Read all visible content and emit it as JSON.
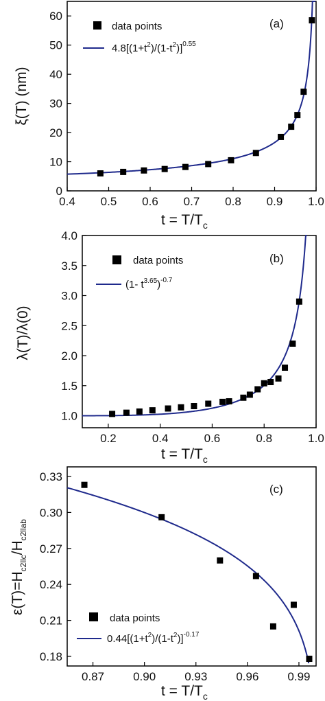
{
  "colors": {
    "fit": "#1f2a8c",
    "marker": "#000000",
    "axis": "#000000"
  },
  "chart_data": [
    {
      "type": "scatter",
      "annotation": "(a)",
      "xlabel": "t = T/T",
      "xlabel_sub": "c",
      "ylabel": "ξ(T) (nm)",
      "xlim": [
        0.4,
        1.0
      ],
      "ylim": [
        0,
        65
      ],
      "xticks": [
        "0.4",
        "0.5",
        "0.6",
        "0.7",
        "0.8",
        "0.9",
        "1.0"
      ],
      "yticks": [
        "0",
        "10",
        "20",
        "30",
        "40",
        "50",
        "60"
      ],
      "legend": {
        "placement": "top-left",
        "points_label": "data points",
        "fit_label": "4.8[(1+t²)/(1-t²)]^0.55"
      },
      "series": [
        {
          "kind": "points",
          "x": [
            0.48,
            0.535,
            0.585,
            0.635,
            0.685,
            0.74,
            0.795,
            0.855,
            0.915,
            0.94,
            0.955,
            0.97,
            0.99
          ],
          "y": [
            6,
            6.5,
            7,
            7.5,
            8.2,
            9.2,
            10.5,
            13,
            18.5,
            22,
            26,
            34,
            58.5
          ]
        },
        {
          "kind": "fit",
          "formula": "4.8*((1+t^2)/(1-t^2))^0.55"
        }
      ]
    },
    {
      "type": "scatter",
      "annotation": "(b)",
      "xlabel": "t = T/T",
      "xlabel_sub": "c",
      "ylabel": "λ(T)/λ(0)",
      "xlim": [
        0.1,
        1.0
      ],
      "ylim": [
        0.8,
        4.0
      ],
      "xticks": [
        "0.2",
        "0.4",
        "0.6",
        "0.8",
        "1.0"
      ],
      "yticks": [
        "1.0",
        "1.5",
        "2.0",
        "2.5",
        "3.0",
        "3.5",
        "4.0"
      ],
      "legend": {
        "placement": "top-left",
        "points_label": "data points",
        "fit_label": "(1- t^3.65)^-0.7"
      },
      "series": [
        {
          "kind": "points",
          "x": [
            0.215,
            0.27,
            0.32,
            0.37,
            0.43,
            0.48,
            0.53,
            0.585,
            0.64,
            0.665,
            0.72,
            0.745,
            0.775,
            0.8,
            0.825,
            0.855,
            0.88,
            0.91,
            0.935
          ],
          "y": [
            1.03,
            1.05,
            1.07,
            1.09,
            1.12,
            1.14,
            1.16,
            1.2,
            1.23,
            1.24,
            1.3,
            1.35,
            1.44,
            1.54,
            1.56,
            1.62,
            1.8,
            2.2,
            2.9
          ]
        },
        {
          "kind": "fit",
          "formula": "(1-t^3.65)^-0.7"
        }
      ]
    },
    {
      "type": "scatter",
      "annotation": "(c)",
      "xlabel": "t = T/T",
      "xlabel_sub": "c",
      "ylabel": "ε(T)=H",
      "ylabel_sub1": "c2llc",
      "ylabel_mid": "/H",
      "ylabel_sub2": "c2llab",
      "xlim": [
        0.855,
        1.0
      ],
      "ylim": [
        0.172,
        0.338
      ],
      "xticks": [
        "0.87",
        "0.90",
        "0.93",
        "0.96",
        "0.99"
      ],
      "yticks": [
        "0.18",
        "0.21",
        "0.24",
        "0.27",
        "0.30",
        "0.33"
      ],
      "legend": {
        "placement": "bottom-left",
        "points_label": "data points",
        "fit_label": "0.44[(1+t²)/(1-t²)]^-0.17"
      },
      "series": [
        {
          "kind": "points",
          "x": [
            0.865,
            0.91,
            0.944,
            0.965,
            0.975,
            0.987,
            0.996
          ],
          "y": [
            0.323,
            0.296,
            0.26,
            0.247,
            0.205,
            0.223,
            0.178
          ]
        },
        {
          "kind": "fit",
          "formula": "0.44*((1+t^2)/(1-t^2))^-0.17"
        }
      ]
    }
  ]
}
